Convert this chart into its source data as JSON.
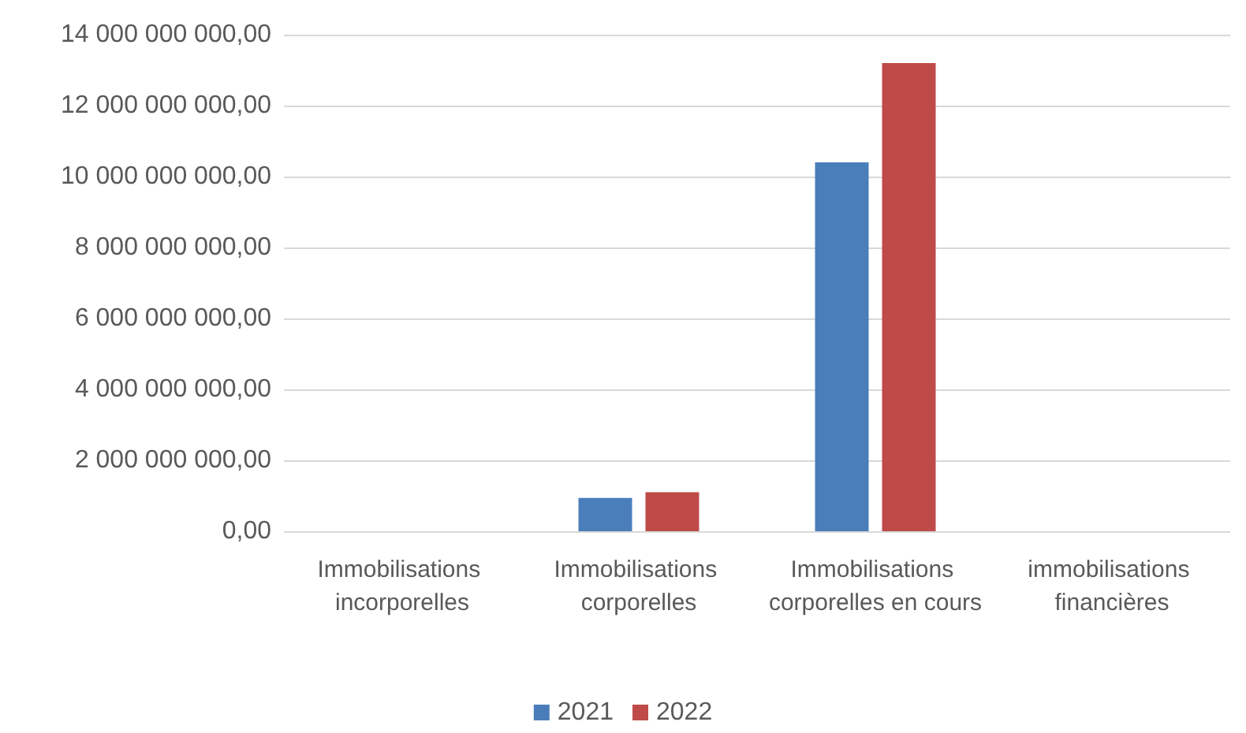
{
  "chart_data": {
    "type": "bar",
    "categories": [
      "Immobilisations incorporelles",
      "Immobilisations corporelles",
      "Immobilisations corporelles en cours",
      "immobilisations financières"
    ],
    "series": [
      {
        "name": "2021",
        "color": "#4a7ebb",
        "values": [
          0,
          940000000,
          10400000000,
          0
        ]
      },
      {
        "name": "2022",
        "color": "#be4b48",
        "values": [
          0,
          1100000000,
          13200000000,
          0
        ]
      }
    ],
    "ylim": [
      0,
      14000000000
    ],
    "yticks": [
      {
        "value": 0,
        "label": "0,00"
      },
      {
        "value": 2000000000,
        "label": "2 000 000 000,00"
      },
      {
        "value": 4000000000,
        "label": "4 000 000 000,00"
      },
      {
        "value": 6000000000,
        "label": "6 000 000 000,00"
      },
      {
        "value": 8000000000,
        "label": "8 000 000 000,00"
      },
      {
        "value": 10000000000,
        "label": "10 000 000 000,00"
      },
      {
        "value": 12000000000,
        "label": "12 000 000 000,00"
      },
      {
        "value": 14000000000,
        "label": "14 000 000 000,00"
      }
    ],
    "grid": "y",
    "legend": "bottom"
  }
}
